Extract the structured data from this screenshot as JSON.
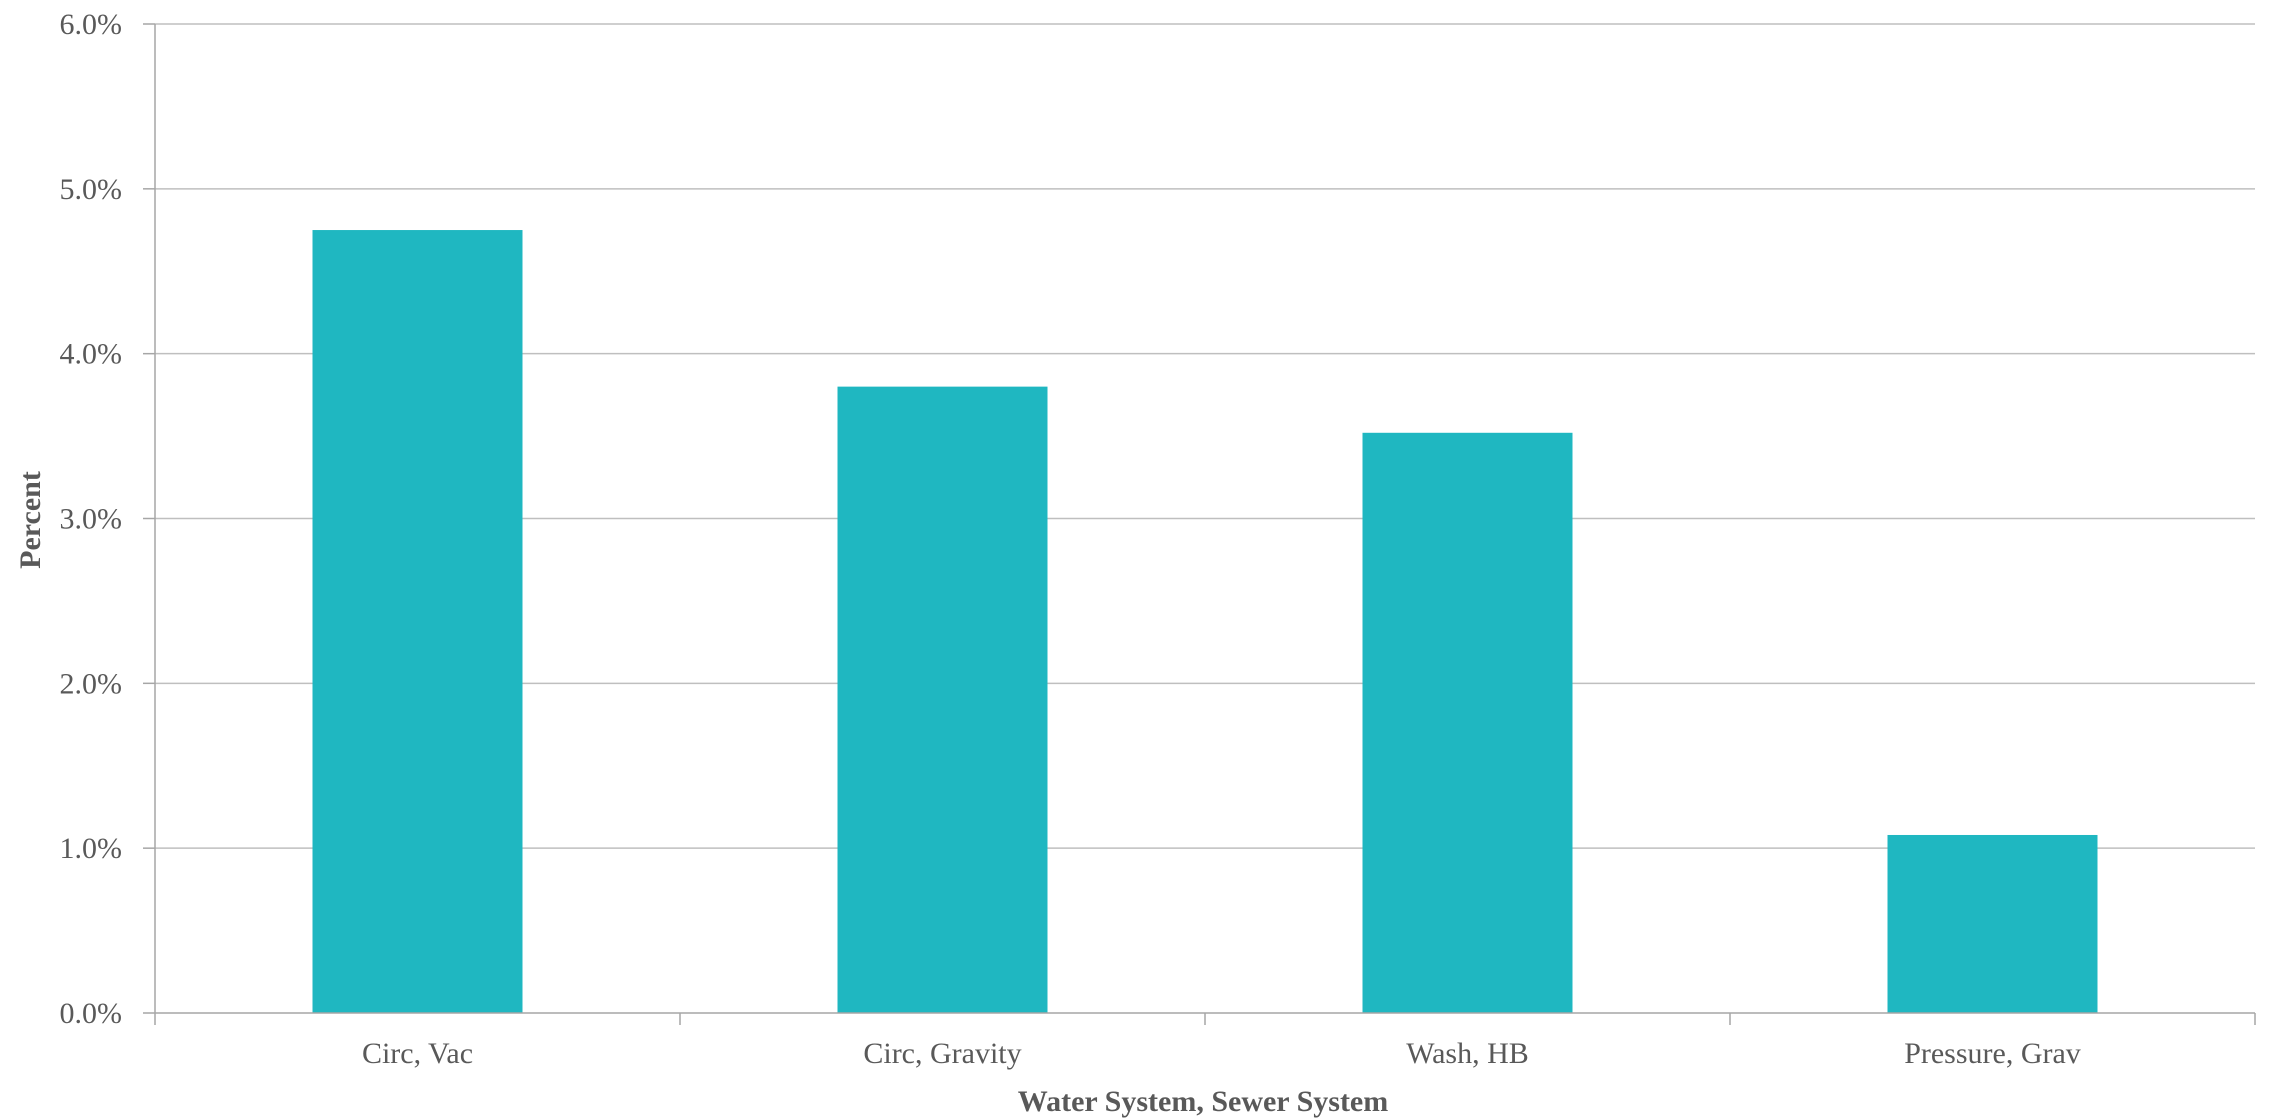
{
  "chart_data": {
    "type": "bar",
    "title": "",
    "xlabel": "Water System, Sewer System",
    "ylabel": "Percent",
    "categories": [
      "Circ, Vac",
      "Circ, Gravity",
      "Wash, HB",
      "Pressure, Grav"
    ],
    "values": [
      4.75,
      3.8,
      3.52,
      1.08
    ],
    "value_unit": "%",
    "ylim": [
      0,
      6
    ],
    "yticks": [
      0,
      1,
      2,
      3,
      4,
      5,
      6
    ],
    "ytick_labels": [
      "0.0%",
      "1.0%",
      "2.0%",
      "3.0%",
      "4.0%",
      "5.0%",
      "6.0%"
    ],
    "grid": "horizontal",
    "legend": "none",
    "colors": {
      "bar": "#1fb7c1",
      "grid": "#bfbfbf",
      "axis": "#a6a6a6",
      "text": "#595959"
    }
  }
}
